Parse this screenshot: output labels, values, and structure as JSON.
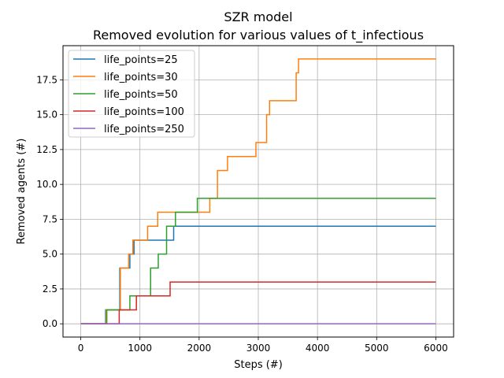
{
  "chart_data": {
    "type": "line",
    "title": "SZR model",
    "subtitle": "Removed evolution for various values of t_infectious",
    "xlabel": "Steps (#)",
    "ylabel": "Removed agents (#)",
    "xlim": [
      -300,
      6300
    ],
    "ylim": [
      -0.95,
      19.95
    ],
    "xticks": [
      0,
      1000,
      2000,
      3000,
      4000,
      5000,
      6000
    ],
    "yticks": [
      0.0,
      2.5,
      5.0,
      7.5,
      10.0,
      12.5,
      15.0,
      17.5
    ],
    "xtick_labels": [
      "0",
      "1000",
      "2000",
      "3000",
      "4000",
      "5000",
      "6000"
    ],
    "ytick_labels": [
      "0.0",
      "2.5",
      "5.0",
      "7.5",
      "10.0",
      "12.5",
      "15.0",
      "17.5"
    ],
    "grid": true,
    "legend_position": "top-left",
    "series": [
      {
        "name": "life_points=25",
        "color": "#1f77b4",
        "x": [
          0,
          420,
          420,
          660,
          660,
          830,
          830,
          900,
          900,
          1570,
          1570,
          6000
        ],
        "y": [
          0,
          0,
          1,
          1,
          4,
          4,
          5,
          5,
          6,
          6,
          7,
          7
        ]
      },
      {
        "name": "life_points=30",
        "color": "#ff7f0e",
        "x": [
          0,
          430,
          430,
          670,
          670,
          810,
          810,
          880,
          880,
          1130,
          1130,
          1300,
          1300,
          2180,
          2180,
          2310,
          2310,
          2480,
          2480,
          2960,
          2960,
          3140,
          3140,
          3190,
          3190,
          3640,
          3640,
          3680,
          3680,
          6000
        ],
        "y": [
          0,
          0,
          1,
          1,
          4,
          4,
          5,
          5,
          6,
          6,
          7,
          7,
          8,
          8,
          9,
          9,
          11,
          11,
          12,
          12,
          13,
          13,
          15,
          15,
          16,
          16,
          18,
          18,
          19,
          19
        ]
      },
      {
        "name": "life_points=50",
        "color": "#2ca02c",
        "x": [
          0,
          440,
          440,
          830,
          830,
          1180,
          1180,
          1310,
          1310,
          1450,
          1450,
          1600,
          1600,
          1970,
          1970,
          6000
        ],
        "y": [
          0,
          0,
          1,
          1,
          2,
          2,
          4,
          4,
          5,
          5,
          7,
          7,
          8,
          8,
          9,
          9
        ]
      },
      {
        "name": "life_points=100",
        "color": "#d62728",
        "x": [
          0,
          650,
          650,
          940,
          940,
          1510,
          1510,
          6000
        ],
        "y": [
          0,
          0,
          1,
          1,
          2,
          2,
          3,
          3
        ]
      },
      {
        "name": "life_points=250",
        "color": "#9467bd",
        "x": [
          0,
          6000
        ],
        "y": [
          0,
          0
        ]
      }
    ]
  }
}
